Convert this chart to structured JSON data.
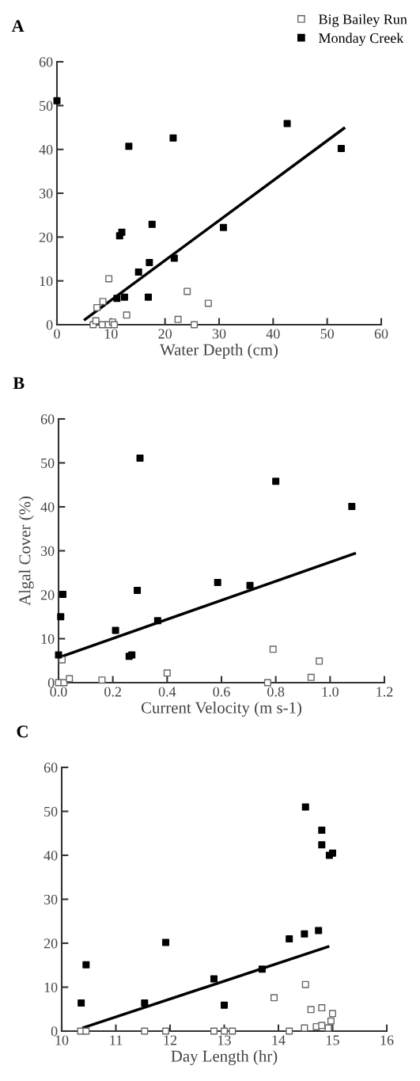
{
  "chart_data": [
    {
      "type": "scatter",
      "title": "A",
      "xlabel": "Water Depth (cm)",
      "xlim": [
        0,
        60
      ],
      "xticks": [
        0,
        10,
        20,
        30,
        40,
        50,
        60
      ],
      "ylim": [
        0,
        60
      ],
      "yticks": [
        0,
        10,
        20,
        30,
        40,
        50,
        60
      ],
      "legend": "top right",
      "grid": false,
      "series": [
        {
          "name": "Big Bailey Run",
          "color": "#666666",
          "marker": "square",
          "x": [
            9.6,
            7.4,
            8.5,
            6.7,
            7.2,
            8.4,
            9.5,
            10.3,
            10.6,
            12.9,
            22.4,
            24.1,
            25.4,
            28.0
          ],
          "values": [
            10.5,
            3.9,
            5.3,
            0,
            0.9,
            0,
            0,
            0.6,
            0,
            2.2,
            1.2,
            7.6,
            0,
            4.9
          ]
        },
        {
          "name": "Monday Creek",
          "color": "#000000",
          "marker": "square",
          "x": [
            0,
            13.3,
            21.5,
            42.6,
            52.6,
            11.6,
            12.0,
            17.6,
            30.8,
            17.1,
            21.7,
            15.1,
            11.1,
            12.5,
            16.9
          ],
          "values": [
            51.1,
            40.7,
            42.6,
            45.9,
            40.2,
            20.3,
            21.1,
            22.9,
            22.2,
            14.2,
            15.2,
            12.0,
            6.0,
            6.3,
            6.3
          ]
        },
        {
          "type": "line",
          "color": "#000000",
          "x": [
            5.0,
            53.3
          ],
          "values": [
            1.0,
            45.0
          ]
        }
      ]
    },
    {
      "type": "scatter",
      "title": "B",
      "xlabel": "Current Velocity (m s-1)",
      "ylabel": "Algal Cover (%)",
      "xlim": [
        0,
        1.2
      ],
      "xticks": [
        {
          "value": 0,
          "label": "0.0"
        },
        0.2,
        0.4,
        0.6,
        0.8,
        {
          "value": 1,
          "label": "1.0"
        },
        1.2
      ],
      "ylim": [
        0,
        60
      ],
      "yticks": [
        0,
        10,
        20,
        30,
        40,
        50,
        60
      ],
      "grid": false,
      "series": [
        {
          "color": "#666666",
          "marker": "square",
          "x": [
            0,
            0.02,
            0.013,
            0.04,
            0.16,
            0.4,
            0.77,
            0.79,
            0.93,
            0.96
          ],
          "values": [
            0,
            0,
            5.2,
            0.9,
            0.6,
            2.2,
            0,
            7.6,
            1.2,
            4.9
          ]
        },
        {
          "color": "#000000",
          "marker": "square",
          "x": [
            0,
            0.008,
            0.016,
            0.3,
            0.29,
            0.21,
            0.26,
            0.27,
            0.365,
            0.586,
            0.705,
            0.8,
            1.08
          ],
          "values": [
            6.3,
            15.0,
            20.1,
            51.1,
            21.0,
            11.9,
            6.0,
            6.3,
            14.1,
            22.8,
            22.1,
            45.8,
            40.1
          ]
        },
        {
          "type": "line",
          "color": "#000000",
          "x": [
            0,
            1.095
          ],
          "values": [
            5.7,
            29.5
          ]
        }
      ]
    },
    {
      "type": "scatter",
      "title": "C",
      "xlabel": "Day Length (hr)",
      "xlim": [
        10,
        16
      ],
      "xticks": [
        10,
        11,
        12,
        13,
        14,
        15,
        16
      ],
      "ylim": [
        0,
        60
      ],
      "yticks": [
        0,
        10,
        20,
        30,
        40,
        50,
        60
      ],
      "grid": false,
      "series": [
        {
          "color": "#666666",
          "marker": "square",
          "x": [
            10.35,
            10.45,
            11.53,
            11.92,
            12.81,
            13.0,
            13.15,
            14.2,
            13.92,
            14.5,
            14.6,
            14.8,
            15.0,
            14.97,
            14.48,
            14.7,
            14.8,
            14.92
          ],
          "values": [
            0,
            0,
            0,
            0,
            0,
            0,
            0,
            0,
            7.6,
            10.6,
            4.9,
            5.3,
            4.0,
            2.3,
            0.7,
            1.0,
            1.3,
            0.7
          ]
        },
        {
          "color": "#000000",
          "marker": "square",
          "x": [
            10.36,
            10.45,
            11.53,
            11.92,
            12.81,
            13.0,
            13.7,
            14.2,
            14.48,
            14.74,
            14.5,
            14.8,
            14.8,
            14.94,
            15.0
          ],
          "values": [
            6.4,
            15.1,
            6.4,
            20.2,
            11.9,
            5.9,
            14.1,
            21.0,
            22.1,
            22.9,
            51.0,
            45.7,
            42.4,
            40.0,
            40.5
          ]
        },
        {
          "type": "line",
          "color": "#000000",
          "x": [
            10.38,
            14.94
          ],
          "values": [
            0.7,
            19.3
          ]
        }
      ]
    }
  ]
}
